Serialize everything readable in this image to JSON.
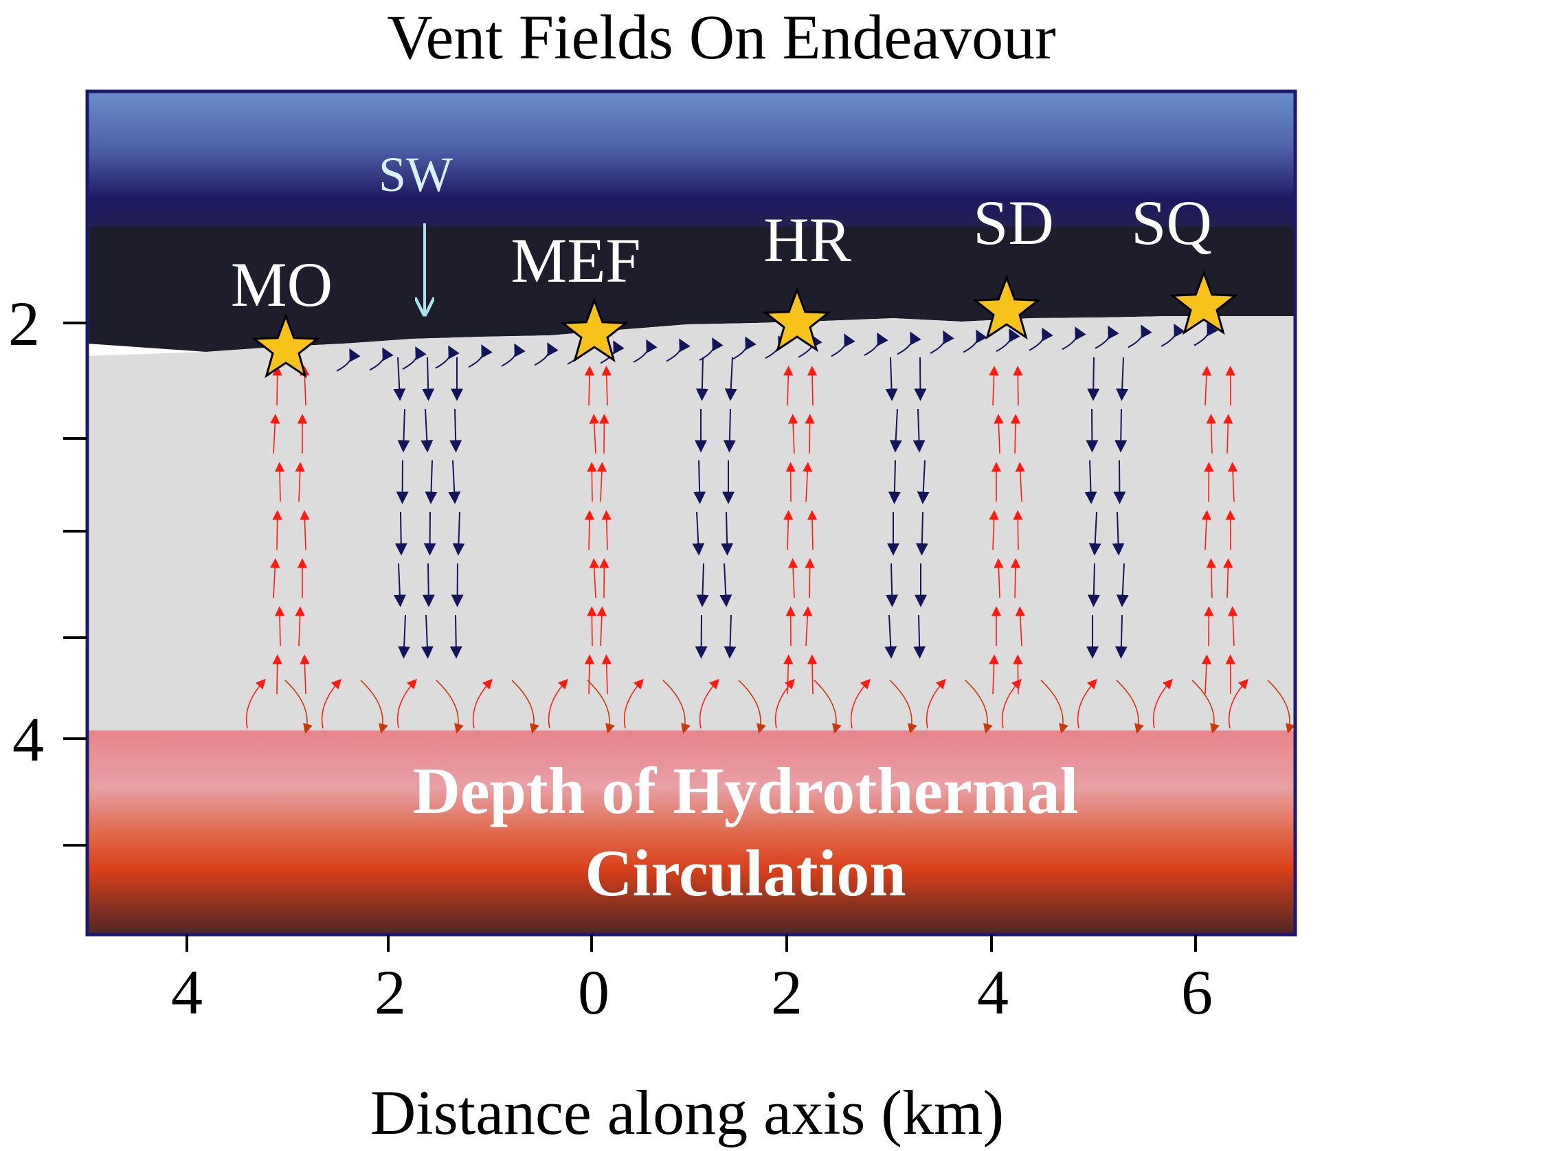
{
  "title": "Vent Fields On Endeavour",
  "vent_fields": [
    "MO",
    "MEF",
    "HR",
    "SD",
    "SQ"
  ],
  "inflow_label": "SW",
  "zone_label": {
    "line1": "Depth of Hydrothermal",
    "line2": "Circulation"
  },
  "x_axis": {
    "title": "Distance along axis (km)",
    "tick_labels": [
      "4",
      "2",
      "0",
      "2",
      "4",
      "6"
    ]
  },
  "y_axis": {
    "tick_labels": [
      "2",
      "4"
    ]
  },
  "colors": {
    "seawater_top": "#6a8fca",
    "seawater_mid": "#1e1a63",
    "seafloor_dark": "#1a1a1a",
    "crust": "#dcdcdc",
    "zone_pink": "#e8939a",
    "zone_orange": "#d84a1e",
    "zone_bottom": "#5a2a28",
    "frame": "#1c1a6e",
    "star_fill": "#f7c21a",
    "upflow_arrow": "#ff1a10",
    "downflow_arrow": "#14145a",
    "sw_arrow": "#a9e3ef"
  },
  "icons": {
    "vent_marker": "star-icon",
    "flow": "arrow-icon"
  }
}
